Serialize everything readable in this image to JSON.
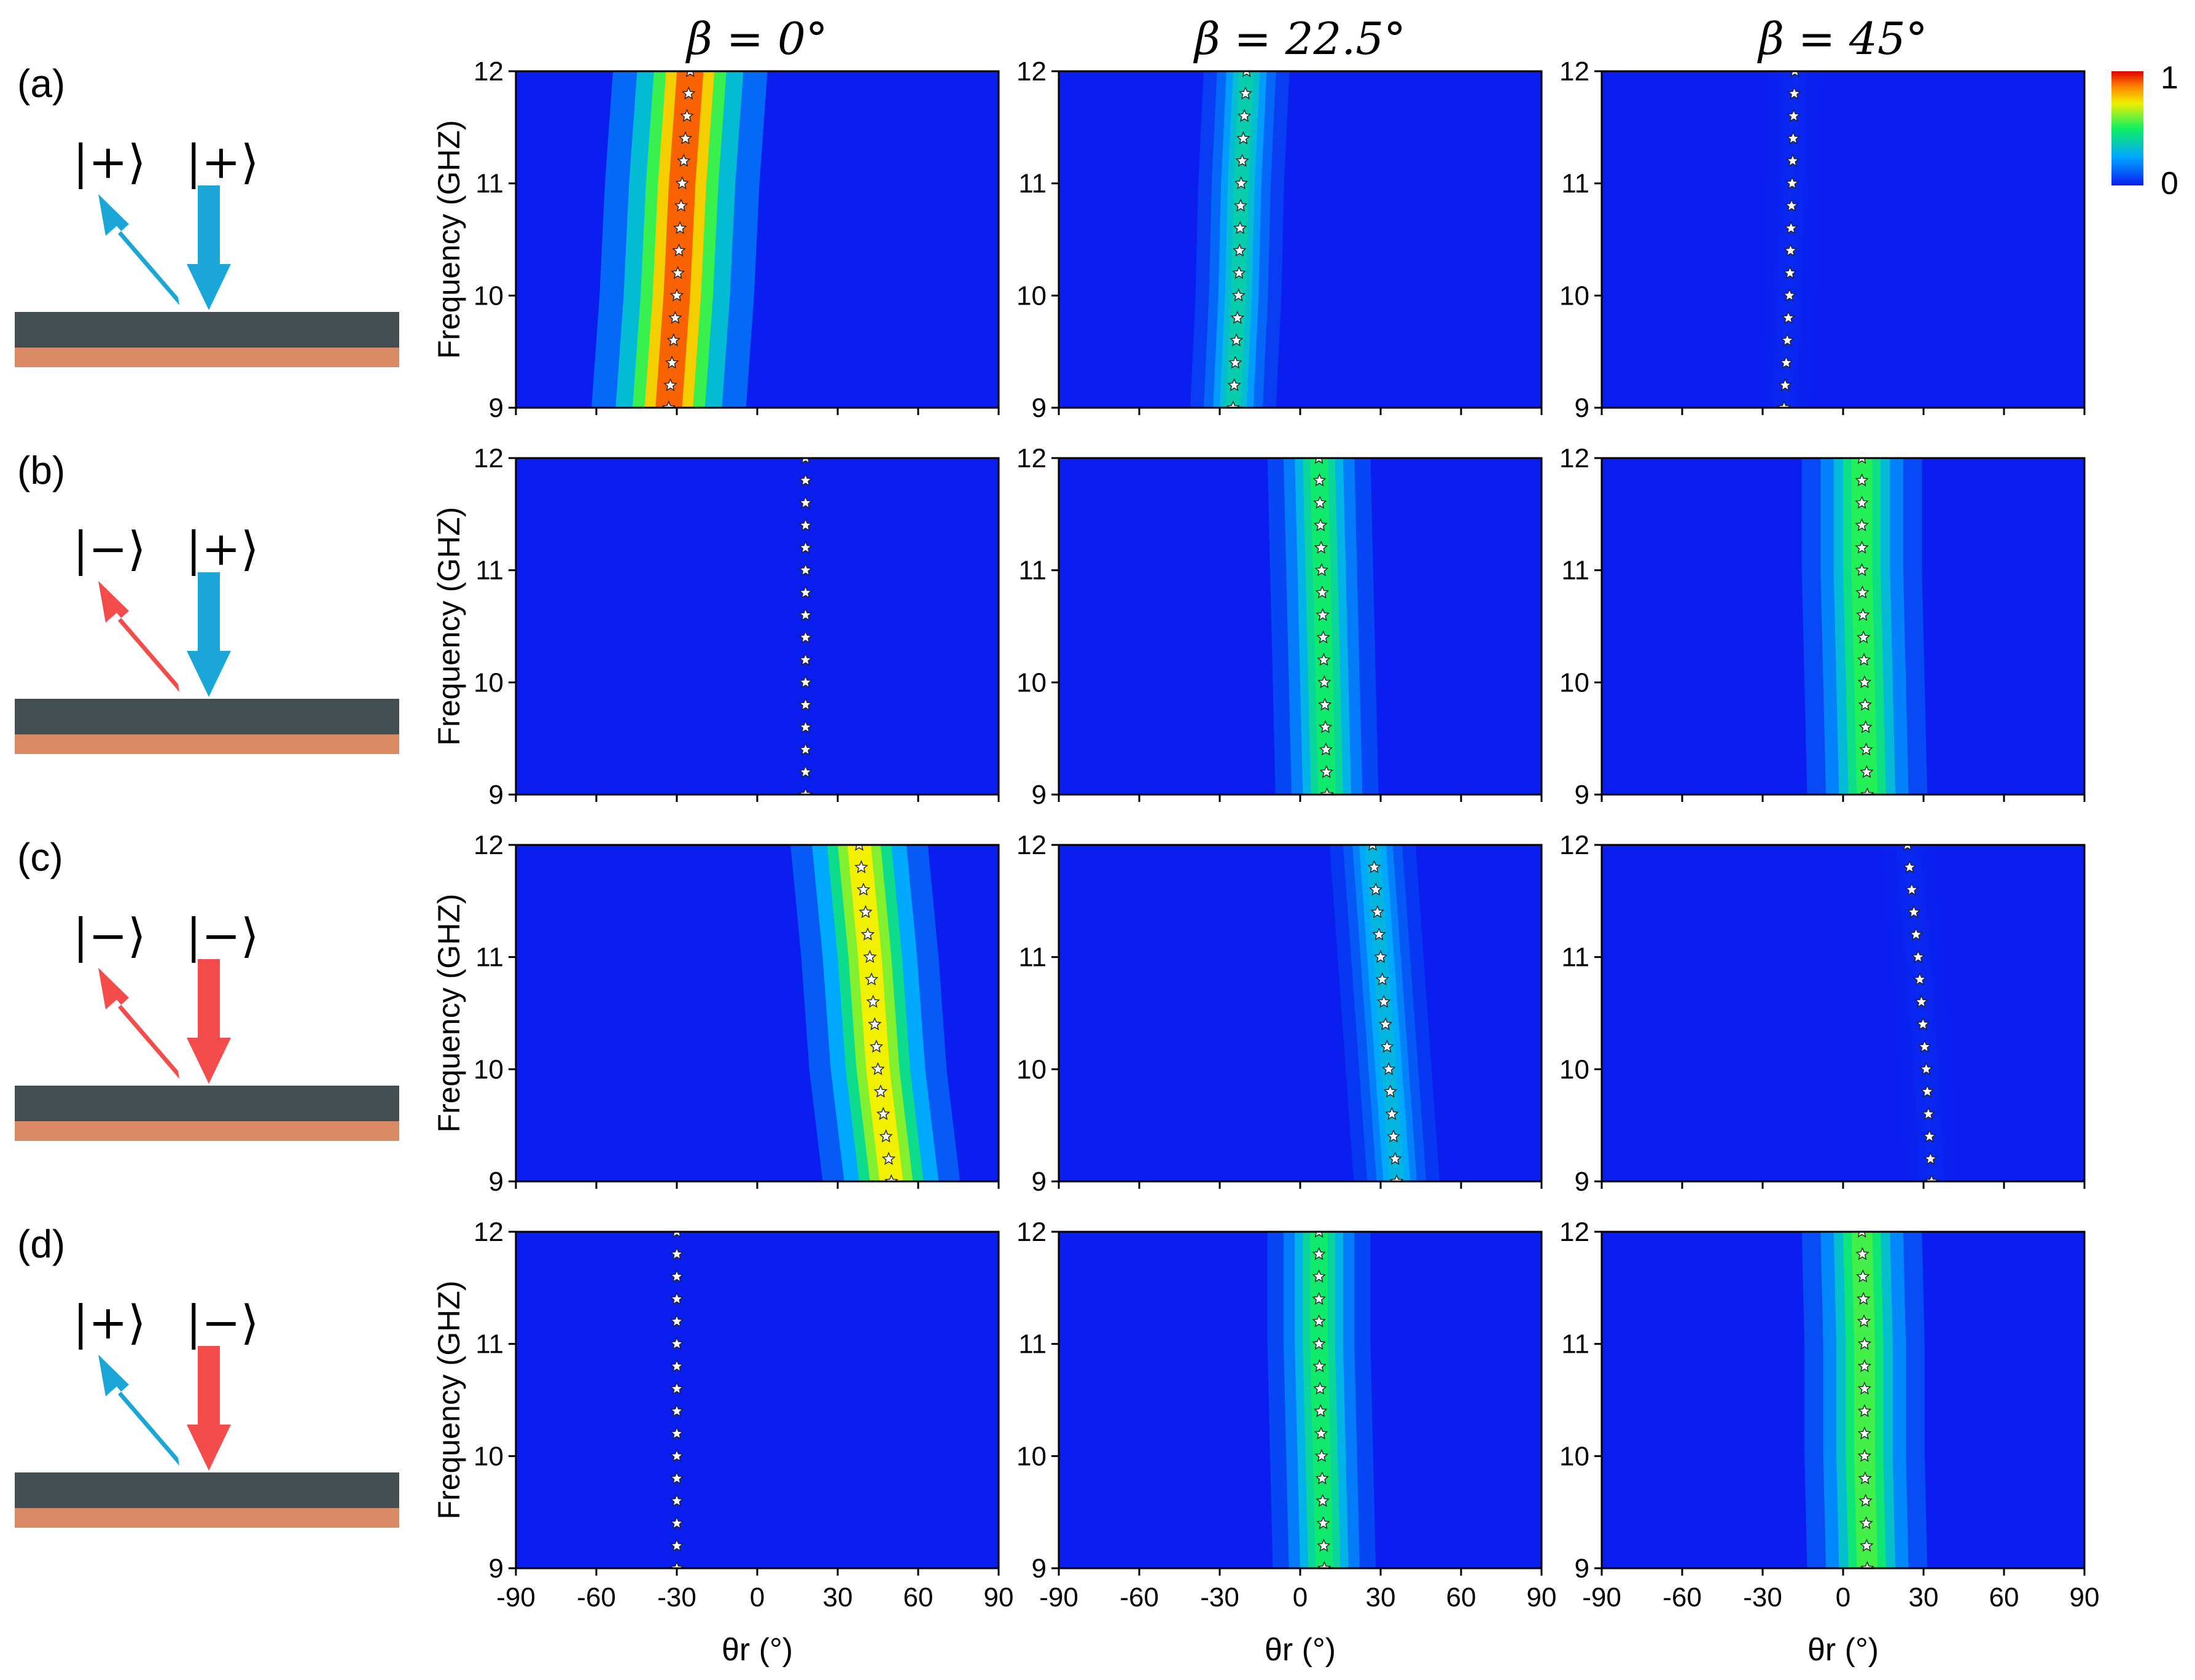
{
  "column_headers": [
    "β = 0°",
    "β = 22.5°",
    "β = 45°"
  ],
  "row_labels": [
    "(a)",
    "(b)",
    "(c)",
    "(d)"
  ],
  "schematics": [
    {
      "reflected_state": "|+⟩",
      "incident_state": "|+⟩",
      "reflected_color": "#1ba6d8",
      "incident_color": "#1ba6d8"
    },
    {
      "reflected_state": "|−⟩",
      "incident_state": "|+⟩",
      "reflected_color": "#f44b4b",
      "incident_color": "#1ba6d8"
    },
    {
      "reflected_state": "|−⟩",
      "incident_state": "|−⟩",
      "reflected_color": "#f44b4b",
      "incident_color": "#f44b4b"
    },
    {
      "reflected_state": "|+⟩",
      "incident_state": "|−⟩",
      "reflected_color": "#1ba6d8",
      "incident_color": "#f44b4b"
    }
  ],
  "colorbar": {
    "max_label": "1",
    "min_label": "0",
    "colormap": "jet"
  },
  "colors": {
    "substrate_top": "#434e53",
    "substrate_bottom": "#d98a64",
    "background_blue": "#0a1ef0"
  },
  "chart_data": {
    "type": "heatmap",
    "xlabel": "θr (°)",
    "ylabel": "Frequency (GHZ)",
    "xlim": [
      -90,
      90
    ],
    "ylim": [
      9,
      12
    ],
    "xticks": [
      "-90",
      "-60",
      "-30",
      "0",
      "30",
      "60",
      "90"
    ],
    "yticks": [
      "9",
      "10",
      "11",
      "12"
    ],
    "panels": [
      {
        "row": 0,
        "col": 0,
        "ridge": [
          [
            9,
            -33
          ],
          [
            10,
            -30
          ],
          [
            11,
            -28
          ],
          [
            12,
            -25
          ]
        ],
        "peak": 0.9,
        "width": 9
      },
      {
        "row": 0,
        "col": 1,
        "ridge": [
          [
            9,
            -25
          ],
          [
            10,
            -23
          ],
          [
            11,
            -22
          ],
          [
            12,
            -20
          ]
        ],
        "peak": 0.38,
        "width": 5
      },
      {
        "row": 0,
        "col": 2,
        "ridge": [
          [
            9,
            -22
          ],
          [
            10,
            -20
          ],
          [
            11,
            -19
          ],
          [
            12,
            -18
          ]
        ],
        "peak": 0.02,
        "width": 3
      },
      {
        "row": 1,
        "col": 0,
        "ridge": [
          [
            9,
            18
          ],
          [
            10,
            18
          ],
          [
            11,
            18
          ],
          [
            12,
            18
          ]
        ],
        "peak": 0.0,
        "width": 3
      },
      {
        "row": 1,
        "col": 1,
        "ridge": [
          [
            9,
            10
          ],
          [
            10,
            9
          ],
          [
            11,
            8
          ],
          [
            12,
            7
          ]
        ],
        "peak": 0.48,
        "width": 6
      },
      {
        "row": 1,
        "col": 2,
        "ridge": [
          [
            9,
            9
          ],
          [
            10,
            8
          ],
          [
            11,
            7
          ],
          [
            12,
            7
          ]
        ],
        "peak": 0.52,
        "width": 7
      },
      {
        "row": 2,
        "col": 0,
        "ridge": [
          [
            9,
            50
          ],
          [
            10,
            45
          ],
          [
            11,
            42
          ],
          [
            12,
            38
          ]
        ],
        "peak": 0.72,
        "width": 8
      },
      {
        "row": 2,
        "col": 1,
        "ridge": [
          [
            9,
            36
          ],
          [
            10,
            33
          ],
          [
            11,
            30
          ],
          [
            12,
            27
          ]
        ],
        "peak": 0.3,
        "width": 5
      },
      {
        "row": 2,
        "col": 2,
        "ridge": [
          [
            9,
            33
          ],
          [
            10,
            31
          ],
          [
            11,
            28
          ],
          [
            12,
            24
          ]
        ],
        "peak": 0.02,
        "width": 3
      },
      {
        "row": 3,
        "col": 0,
        "ridge": [
          [
            9,
            -30
          ],
          [
            10,
            -30
          ],
          [
            11,
            -30
          ],
          [
            12,
            -30
          ]
        ],
        "peak": 0.0,
        "width": 3
      },
      {
        "row": 3,
        "col": 1,
        "ridge": [
          [
            9,
            9
          ],
          [
            10,
            8
          ],
          [
            11,
            7
          ],
          [
            12,
            7
          ]
        ],
        "peak": 0.48,
        "width": 6
      },
      {
        "row": 3,
        "col": 2,
        "ridge": [
          [
            9,
            9
          ],
          [
            10,
            8
          ],
          [
            11,
            8
          ],
          [
            12,
            7
          ]
        ],
        "peak": 0.55,
        "width": 7
      }
    ]
  }
}
